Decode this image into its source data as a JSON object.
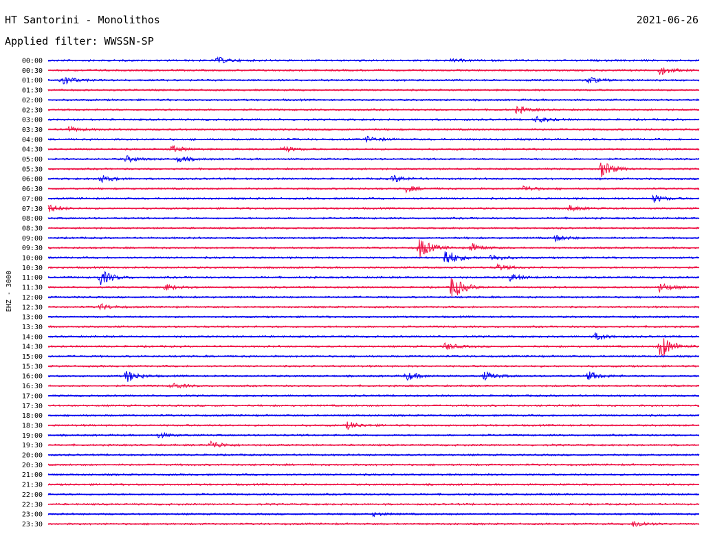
{
  "header": {
    "station": "HT Santorini - Monolithos",
    "date": "2021-06-26",
    "filter": "Applied filter: WWSSN-SP"
  },
  "chart_data": {
    "type": "line",
    "title": "HT Santorini - Monolithos",
    "subtitle": "Applied filter: WWSSN-SP",
    "ylabel": "EHZ - 3000",
    "xlabel": "",
    "trace_colors": [
      "#0000ee",
      "#ee1144"
    ],
    "rows": [
      {
        "label": "00:00",
        "events": [
          {
            "t": 0.26,
            "amp": 0.5
          },
          {
            "t": 0.62,
            "amp": 0.2
          }
        ]
      },
      {
        "label": "00:30",
        "events": [
          {
            "t": 0.94,
            "amp": 0.7
          }
        ]
      },
      {
        "label": "01:00",
        "events": [
          {
            "t": 0.02,
            "amp": 0.9
          },
          {
            "t": 0.83,
            "amp": 0.5
          }
        ]
      },
      {
        "label": "01:30",
        "events": []
      },
      {
        "label": "02:00",
        "events": []
      },
      {
        "label": "02:30",
        "events": [
          {
            "t": 0.72,
            "amp": 0.6
          }
        ]
      },
      {
        "label": "03:00",
        "events": [
          {
            "t": 0.75,
            "amp": 0.5
          }
        ]
      },
      {
        "label": "03:30",
        "events": [
          {
            "t": 0.03,
            "amp": 0.5
          }
        ]
      },
      {
        "label": "04:00",
        "events": [
          {
            "t": 0.49,
            "amp": 0.4
          }
        ]
      },
      {
        "label": "04:30",
        "events": [
          {
            "t": 0.19,
            "amp": 0.6
          },
          {
            "t": 0.36,
            "amp": 0.5
          }
        ]
      },
      {
        "label": "05:00",
        "events": [
          {
            "t": 0.12,
            "amp": 0.5
          },
          {
            "t": 0.2,
            "amp": 0.5
          }
        ]
      },
      {
        "label": "05:30",
        "events": [
          {
            "t": 0.85,
            "amp": 1.4
          }
        ]
      },
      {
        "label": "06:00",
        "events": [
          {
            "t": 0.08,
            "amp": 0.6
          },
          {
            "t": 0.53,
            "amp": 0.6
          }
        ]
      },
      {
        "label": "06:30",
        "events": [
          {
            "t": 0.55,
            "amp": 0.5
          },
          {
            "t": 0.73,
            "amp": 0.5
          }
        ]
      },
      {
        "label": "07:00",
        "events": [
          {
            "t": 0.93,
            "amp": 0.6
          }
        ]
      },
      {
        "label": "07:30",
        "events": [
          {
            "t": 0.0,
            "amp": 0.7
          },
          {
            "t": 0.8,
            "amp": 0.5
          }
        ]
      },
      {
        "label": "08:00",
        "events": []
      },
      {
        "label": "08:30",
        "events": []
      },
      {
        "label": "09:00",
        "events": [
          {
            "t": 0.78,
            "amp": 0.5
          }
        ]
      },
      {
        "label": "09:30",
        "events": [
          {
            "t": 0.57,
            "amp": 1.8
          },
          {
            "t": 0.65,
            "amp": 0.7
          }
        ]
      },
      {
        "label": "10:00",
        "events": [
          {
            "t": 0.61,
            "amp": 1.5
          },
          {
            "t": 0.68,
            "amp": 0.6
          }
        ]
      },
      {
        "label": "10:30",
        "events": [
          {
            "t": 0.69,
            "amp": 0.5
          }
        ]
      },
      {
        "label": "11:00",
        "events": [
          {
            "t": 0.08,
            "amp": 1.3
          },
          {
            "t": 0.71,
            "amp": 0.6
          }
        ]
      },
      {
        "label": "11:30",
        "events": [
          {
            "t": 0.62,
            "amp": 2.0
          },
          {
            "t": 0.18,
            "amp": 0.5
          },
          {
            "t": 0.94,
            "amp": 0.8
          }
        ]
      },
      {
        "label": "12:00",
        "events": []
      },
      {
        "label": "12:30",
        "events": [
          {
            "t": 0.08,
            "amp": 0.5
          }
        ]
      },
      {
        "label": "13:00",
        "events": []
      },
      {
        "label": "13:30",
        "events": []
      },
      {
        "label": "14:00",
        "events": [
          {
            "t": 0.84,
            "amp": 0.6
          }
        ]
      },
      {
        "label": "14:30",
        "events": [
          {
            "t": 0.94,
            "amp": 2.2
          },
          {
            "t": 0.61,
            "amp": 0.6
          }
        ]
      },
      {
        "label": "15:00",
        "events": []
      },
      {
        "label": "15:30",
        "events": []
      },
      {
        "label": "16:00",
        "events": [
          {
            "t": 0.12,
            "amp": 1.0
          },
          {
            "t": 0.55,
            "amp": 0.7
          },
          {
            "t": 0.67,
            "amp": 0.7
          },
          {
            "t": 0.83,
            "amp": 0.7
          }
        ]
      },
      {
        "label": "16:30",
        "events": [
          {
            "t": 0.19,
            "amp": 0.5
          }
        ]
      },
      {
        "label": "17:00",
        "events": []
      },
      {
        "label": "17:30",
        "events": []
      },
      {
        "label": "18:00",
        "events": []
      },
      {
        "label": "18:30",
        "events": [
          {
            "t": 0.46,
            "amp": 0.6
          }
        ]
      },
      {
        "label": "19:00",
        "events": [
          {
            "t": 0.17,
            "amp": 0.4
          }
        ]
      },
      {
        "label": "19:30",
        "events": [
          {
            "t": 0.25,
            "amp": 0.7
          }
        ]
      },
      {
        "label": "20:00",
        "events": []
      },
      {
        "label": "20:30",
        "events": []
      },
      {
        "label": "21:00",
        "events": []
      },
      {
        "label": "21:30",
        "events": []
      },
      {
        "label": "22:00",
        "events": []
      },
      {
        "label": "22:30",
        "events": []
      },
      {
        "label": "23:00",
        "events": [
          {
            "t": 0.5,
            "amp": 0.3
          }
        ]
      },
      {
        "label": "23:30",
        "events": [
          {
            "t": 0.9,
            "amp": 0.6
          }
        ]
      }
    ]
  }
}
